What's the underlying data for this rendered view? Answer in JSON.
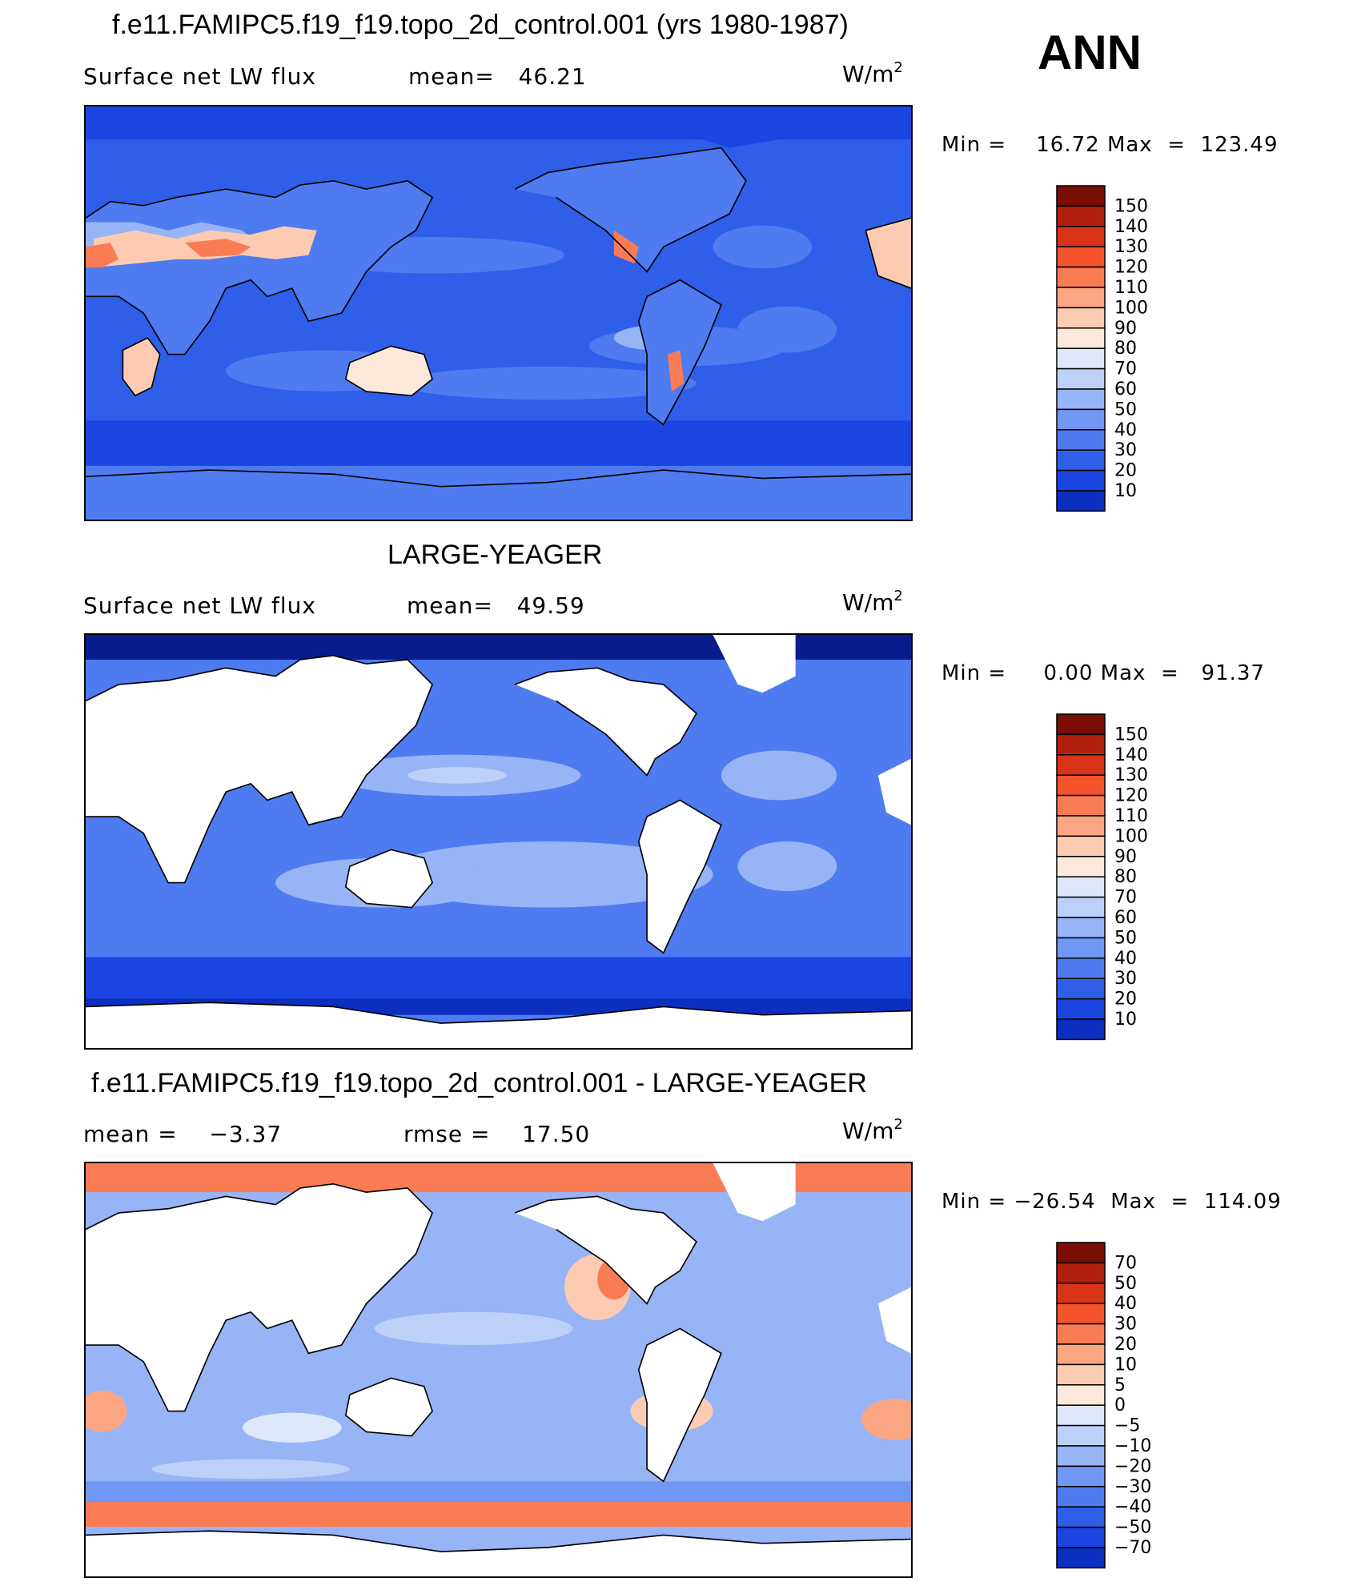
{
  "figure": {
    "season": "ANN"
  },
  "colors": {
    "palette_standard": [
      "#081c8c",
      "#0c2fbf",
      "#1a45e0",
      "#2f5ee8",
      "#4e7bf0",
      "#7097f3",
      "#97b4f6",
      "#bdd1f8",
      "#dde9fb",
      "#fde8dc",
      "#fccbb2",
      "#fba582",
      "#f97c55",
      "#f4532c",
      "#d9331a",
      "#b0200c",
      "#7a0d04"
    ],
    "ocean_light": "#dbe7fb",
    "land": "#ffffff",
    "coast": "#000000"
  },
  "panels": [
    {
      "id": "top",
      "title": "f.e11.FAMIPC5.f19_f19.topo_2d_control.001 (yrs 1980-1987)",
      "left_label": "Surface net LW flux",
      "mid_label": "mean=   46.21",
      "units_base": "W/m",
      "units_exp": "2",
      "minmax": "Min =    16.72 Max  =  123.49",
      "colorbar_levels": [
        "150",
        "140",
        "130",
        "120",
        "110",
        "100",
        "90",
        "80",
        "70",
        "60",
        "50",
        "40",
        "30",
        "20",
        "10"
      ]
    },
    {
      "id": "middle",
      "title": "LARGE-YEAGER",
      "left_label": "Surface net LW flux",
      "mid_label": "mean=   49.59",
      "units_base": "W/m",
      "units_exp": "2",
      "minmax": "Min =     0.00 Max  =   91.37",
      "colorbar_levels": [
        "150",
        "140",
        "130",
        "120",
        "110",
        "100",
        "90",
        "80",
        "70",
        "60",
        "50",
        "40",
        "30",
        "20",
        "10"
      ]
    },
    {
      "id": "bottom",
      "title": "f.e11.FAMIPC5.f19_f19.topo_2d_control.001 - LARGE-YEAGER",
      "left_label": "mean =    −3.37",
      "mid_label": "rmse =    17.50",
      "units_base": "W/m",
      "units_exp": "2",
      "minmax": "Min = −26.54  Max  =  114.09",
      "colorbar_levels": [
        "70",
        "50",
        "40",
        "30",
        "20",
        "10",
        "5",
        "0",
        "−5",
        "−10",
        "−20",
        "−30",
        "−40",
        "−50",
        "−70"
      ]
    }
  ]
}
